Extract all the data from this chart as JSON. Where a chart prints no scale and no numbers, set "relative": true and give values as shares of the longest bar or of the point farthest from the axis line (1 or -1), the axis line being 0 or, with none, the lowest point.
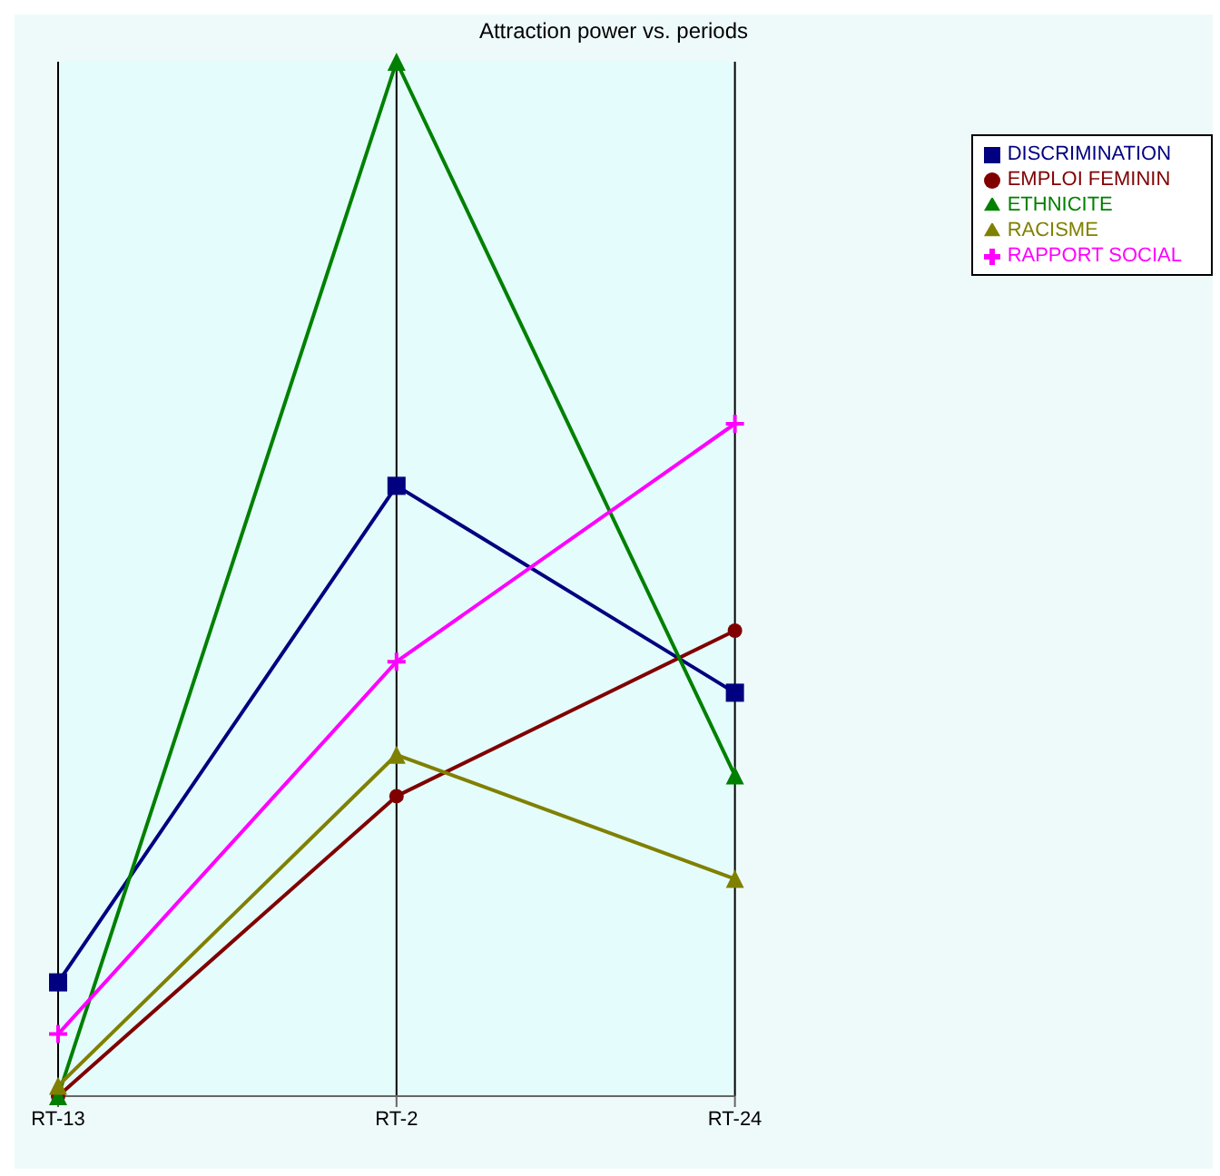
{
  "chart_data": {
    "type": "line",
    "title": "Attraction power vs. periods",
    "relative": true,
    "categories": [
      "RT-13",
      "RT-2",
      "RT-24"
    ],
    "grid": "x",
    "legend": "top right",
    "series": [
      {
        "name": "DISCRIMINATION",
        "color": "#000080",
        "marker": "square",
        "values": [
          0.11,
          0.59,
          0.39
        ]
      },
      {
        "name": "EMPLOI FEMININ",
        "color": "#800000",
        "marker": "circle",
        "values": [
          0,
          0.29,
          0.45
        ]
      },
      {
        "name": "ETHNICITE",
        "color": "#008000",
        "marker": "triangle",
        "values": [
          0,
          1,
          0.31
        ]
      },
      {
        "name": "RACISME",
        "color": "#808000",
        "marker": "triangle",
        "values": [
          0.01,
          0.33,
          0.21
        ]
      },
      {
        "name": "RAPPORT SOCIAL",
        "color": "#ff00ff",
        "marker": "cross",
        "values": [
          0.06,
          0.42,
          0.65
        ]
      }
    ]
  }
}
